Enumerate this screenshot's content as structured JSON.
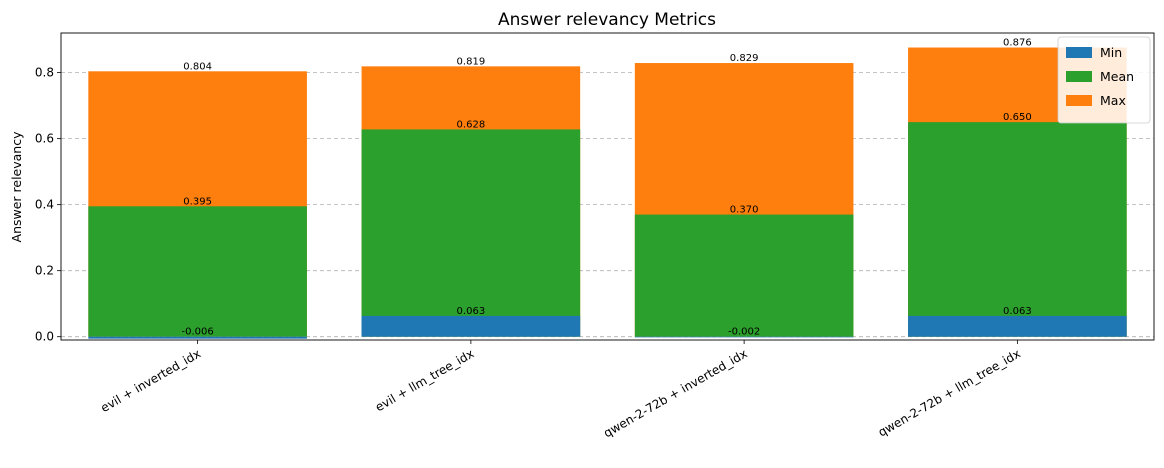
{
  "chart_data": {
    "type": "bar",
    "title": "Answer relevancy Metrics",
    "xlabel": "",
    "ylabel": "Answer relevancy",
    "categories": [
      "evil + inverted_idx",
      "evil + llm_tree_idx",
      "qwen-2-72b + inverted_idx",
      "qwen-2-72b + llm_tree_idx"
    ],
    "series": [
      {
        "name": "Min",
        "color": "#1f77b4",
        "values": [
          -0.006,
          0.063,
          -0.002,
          0.063
        ],
        "labels": [
          "-0.006",
          "0.063",
          "-0.002",
          "0.063"
        ]
      },
      {
        "name": "Mean",
        "color": "#2ca02c",
        "values": [
          0.395,
          0.628,
          0.37,
          0.65
        ],
        "labels": [
          "0.395",
          "0.628",
          "0.370",
          "0.650"
        ]
      },
      {
        "name": "Max",
        "color": "#ff7f0e",
        "values": [
          0.804,
          0.819,
          0.829,
          0.876
        ],
        "labels": [
          "0.804",
          "0.819",
          "0.829",
          "0.876"
        ]
      }
    ],
    "ylim": [
      -0.01,
      0.92
    ],
    "yticks": [
      0.0,
      0.2,
      0.4,
      0.6,
      0.8
    ],
    "ytick_labels": [
      "0.0",
      "0.2",
      "0.4",
      "0.6",
      "0.8"
    ],
    "grid": "y-dashed",
    "legend_position": "top-right"
  }
}
